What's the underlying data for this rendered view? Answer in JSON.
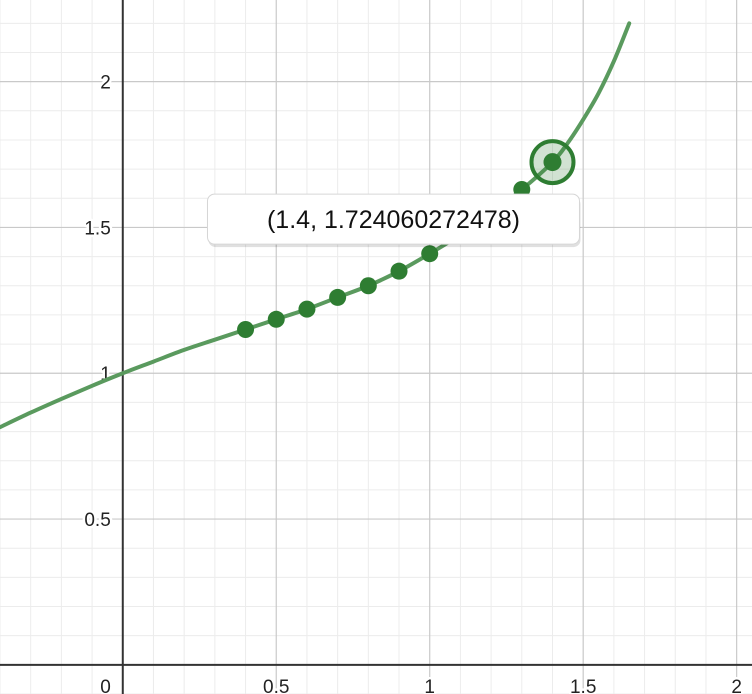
{
  "chart_data": {
    "type": "line",
    "title": "",
    "xlabel": "",
    "ylabel": "",
    "xlim": [
      -0.4,
      2.05
    ],
    "ylim": [
      -0.1,
      2.28
    ],
    "grid": true,
    "x_ticks": [
      {
        "value": 0,
        "label": "0"
      },
      {
        "value": 0.5,
        "label": "0.5"
      },
      {
        "value": 1,
        "label": "1"
      },
      {
        "value": 1.5,
        "label": "1.5"
      },
      {
        "value": 2,
        "label": "2"
      }
    ],
    "y_ticks": [
      {
        "value": 0.5,
        "label": "0.5"
      },
      {
        "value": 1,
        "label": "1"
      },
      {
        "value": 1.5,
        "label": "1.5"
      },
      {
        "value": 2,
        "label": "2"
      }
    ],
    "curve": {
      "x": [
        -0.4,
        -0.3,
        -0.2,
        -0.1,
        0,
        0.1,
        0.2,
        0.3,
        0.4,
        0.5,
        0.6,
        0.7,
        0.8,
        0.9,
        1.0,
        1.1,
        1.2,
        1.3,
        1.4,
        1.45,
        1.5,
        1.55,
        1.6,
        1.65
      ],
      "y": [
        0.815,
        0.865,
        0.912,
        0.957,
        1.0,
        1.04,
        1.08,
        1.115,
        1.15,
        1.185,
        1.22,
        1.26,
        1.3,
        1.35,
        1.41,
        1.475,
        1.55,
        1.63,
        1.724,
        1.79,
        1.87,
        1.96,
        2.07,
        2.2
      ],
      "color": "#5a9a5e"
    },
    "series": [
      {
        "type": "scatter",
        "x": [
          0.4,
          0.5,
          0.6,
          0.7,
          0.8,
          0.9,
          1.0,
          1.1,
          1.2,
          1.3,
          1.4
        ],
        "y": [
          1.15,
          1.185,
          1.22,
          1.26,
          1.3,
          1.35,
          1.41,
          1.475,
          1.55,
          1.63,
          1.724060272478
        ],
        "color": "#2e7d32"
      }
    ],
    "highlight": {
      "x": 1.4,
      "y": 1.724060272478,
      "color": "#2e7d32"
    },
    "annotations": [
      {
        "text": "(1.4, 1.724060272478)",
        "x": 1.4,
        "y": 1.724060272478
      }
    ]
  }
}
